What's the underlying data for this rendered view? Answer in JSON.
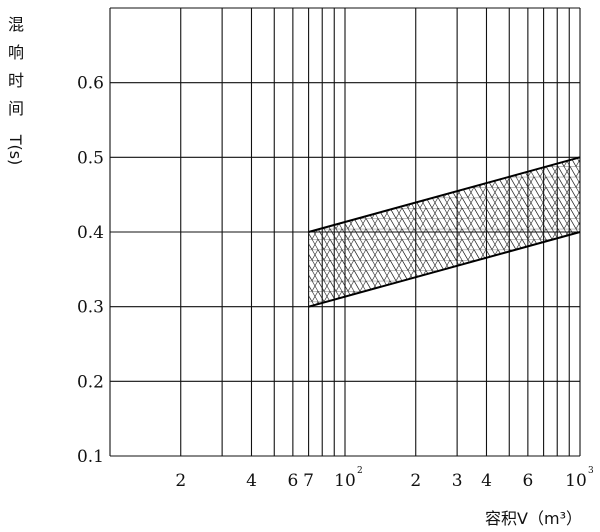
{
  "chart_data": {
    "type": "area",
    "xscale": "log",
    "x_range": [
      10,
      1000
    ],
    "ylim": [
      0.1,
      0.7
    ],
    "grid": true,
    "xlabel": "容积V（m³）",
    "ylabel_chars": [
      "混",
      "响",
      "时",
      "间"
    ],
    "ylabel_unit": "T(s)",
    "y_ticks": [
      {
        "value": 0.1,
        "label": "0.1"
      },
      {
        "value": 0.2,
        "label": "0.2"
      },
      {
        "value": 0.3,
        "label": "0.3"
      },
      {
        "value": 0.4,
        "label": "0.4"
      },
      {
        "value": 0.5,
        "label": "0.5"
      },
      {
        "value": 0.6,
        "label": "0.6"
      }
    ],
    "x_ticks": [
      {
        "value": 20,
        "label": "2"
      },
      {
        "value": 40,
        "label": "4"
      },
      {
        "value": 60,
        "label": "6"
      },
      {
        "value": 70,
        "label": "7"
      },
      {
        "value": 100,
        "label": "10",
        "sup": "2"
      },
      {
        "value": 200,
        "label": "2"
      },
      {
        "value": 300,
        "label": "3"
      },
      {
        "value": 400,
        "label": "4"
      },
      {
        "value": 600,
        "label": "6"
      },
      {
        "value": 1000,
        "label": "10",
        "sup": "3"
      }
    ],
    "x_gridlines": [
      10,
      20,
      30,
      40,
      50,
      60,
      70,
      80,
      90,
      100,
      200,
      300,
      400,
      500,
      600,
      700,
      800,
      900,
      1000
    ],
    "y_gridlines": [
      0.1,
      0.2,
      0.3,
      0.4,
      0.5,
      0.6,
      0.7
    ],
    "band": {
      "x": [
        70,
        1000
      ],
      "upper": [
        0.4,
        0.5
      ],
      "lower": [
        0.3,
        0.4
      ],
      "fill": "crosshatch"
    }
  }
}
